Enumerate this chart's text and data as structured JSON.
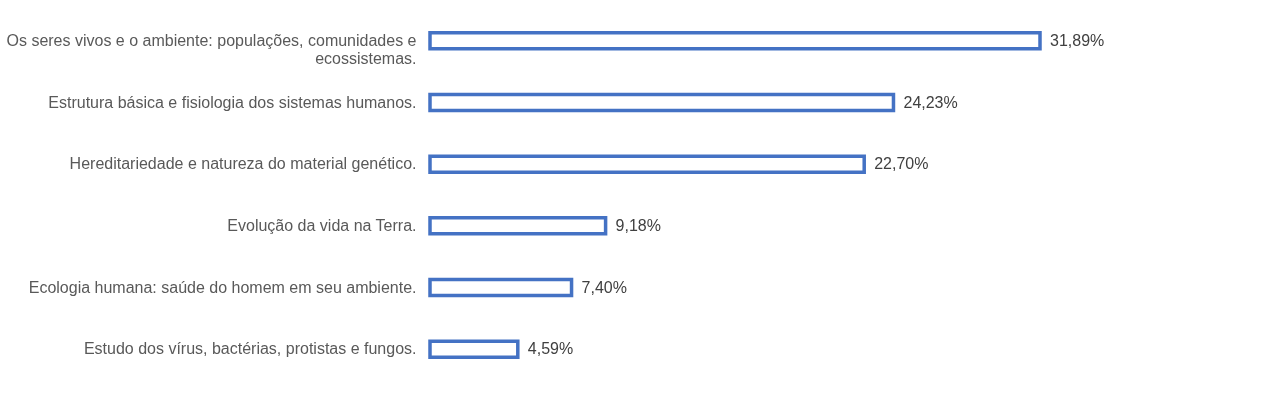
{
  "chart_data": {
    "type": "bar",
    "orientation": "horizontal",
    "categories": [
      "Os seres vivos e o ambiente: populações, comunidades e ecossistemas.",
      "Estrutura básica e fisiologia dos sistemas humanos.",
      "Hereditariedade e natureza do material genético.",
      "Evolução da vida na Terra.",
      "Ecologia humana: saúde do homem em seu ambiente.",
      "Estudo dos vírus, bactérias, protistas e fungos."
    ],
    "values": [
      31.89,
      24.23,
      22.7,
      9.18,
      7.4,
      4.59
    ],
    "value_labels": [
      "31,89%",
      "24,23%",
      "22,70%",
      "9,18%",
      "7,40%",
      "4,59%"
    ],
    "color": "#4472c4",
    "grid": false
  }
}
